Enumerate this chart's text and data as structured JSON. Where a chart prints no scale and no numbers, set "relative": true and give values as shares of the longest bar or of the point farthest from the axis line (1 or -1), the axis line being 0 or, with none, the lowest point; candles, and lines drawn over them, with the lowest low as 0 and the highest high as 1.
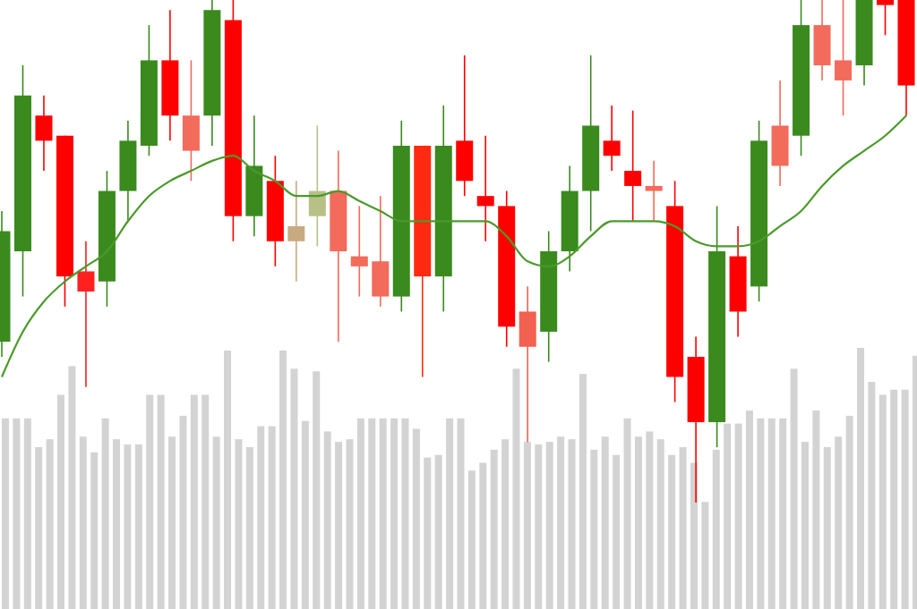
{
  "chart_data": [
    {
      "type": "candlestick",
      "relative": true,
      "categories": [
        null,
        null,
        null,
        null,
        null,
        null,
        null,
        null,
        null,
        null,
        null,
        null,
        null,
        null,
        null,
        null,
        null,
        null,
        null,
        null,
        null,
        null,
        null,
        null,
        null,
        null,
        null,
        null,
        null,
        null,
        null,
        null,
        null,
        null,
        null,
        null,
        null,
        null,
        null,
        null,
        null,
        null,
        null,
        null
      ],
      "ohlc": [
        [
          0.32,
          0.58,
          0.29,
          0.54
        ],
        [
          0.5,
          0.87,
          0.41,
          0.81
        ],
        [
          0.77,
          0.81,
          0.66,
          0.72
        ],
        [
          0.73,
          0.73,
          0.39,
          0.45
        ],
        [
          0.46,
          0.52,
          0.23,
          0.42
        ],
        [
          0.44,
          0.66,
          0.39,
          0.62
        ],
        [
          0.62,
          0.76,
          0.56,
          0.72
        ],
        [
          0.71,
          0.95,
          0.69,
          0.88
        ],
        [
          0.88,
          0.98,
          0.72,
          0.77
        ],
        [
          0.77,
          0.88,
          0.64,
          0.7
        ],
        [
          0.77,
          1,
          0.71,
          0.98
        ],
        [
          0.96,
          1,
          0.52,
          0.57
        ],
        [
          0.57,
          0.77,
          0.53,
          0.67
        ],
        [
          0.64,
          0.69,
          0.47,
          0.52
        ],
        [
          0.55,
          0.64,
          0.44,
          0.52
        ],
        [
          0.57,
          0.75,
          0.51,
          0.62
        ],
        [
          0.62,
          0.7,
          0.32,
          0.5
        ],
        [
          0.49,
          0.59,
          0.41,
          0.47
        ],
        [
          0.48,
          0.61,
          0.39,
          0.41
        ],
        [
          0.41,
          0.76,
          0.38,
          0.71
        ],
        [
          0.71,
          0.71,
          0.25,
          0.45
        ],
        [
          0.45,
          0.79,
          0.38,
          0.71
        ],
        [
          0.72,
          0.89,
          0.61,
          0.64
        ],
        [
          0.61,
          0.73,
          0.52,
          0.59
        ],
        [
          0.59,
          0.62,
          0.31,
          0.35
        ],
        [
          0.38,
          0.43,
          0.12,
          0.31
        ],
        [
          0.34,
          0.54,
          0.28,
          0.5
        ],
        [
          0.5,
          0.67,
          0.46,
          0.62
        ],
        [
          0.62,
          0.89,
          0.54,
          0.75
        ],
        [
          0.72,
          0.79,
          0.66,
          0.69
        ],
        [
          0.66,
          0.78,
          0.56,
          0.63
        ],
        [
          0.63,
          0.68,
          0.56,
          0.62
        ],
        [
          0.59,
          0.64,
          0.2,
          0.25
        ],
        [
          0.29,
          0.33,
          0,
          0.16
        ],
        [
          0.16,
          0.59,
          0.11,
          0.5
        ],
        [
          0.49,
          0.55,
          0.33,
          0.38
        ],
        [
          0.43,
          0.76,
          0.4,
          0.72
        ],
        [
          0.75,
          0.84,
          0.63,
          0.67
        ],
        [
          0.73,
          1,
          0.69,
          0.95
        ],
        [
          0.95,
          1,
          0.84,
          0.87
        ],
        [
          0.88,
          1,
          0.77,
          0.84
        ],
        [
          0.87,
          1,
          0.83,
          1
        ],
        [
          1,
          1,
          0.93,
          0.99
        ],
        [
          1,
          1,
          0.77,
          0.83
        ]
      ],
      "colors": [
        "#3a8a1e",
        "#3a8a1e",
        "#ff0000",
        "#ff0000",
        "#ff2020",
        "#3a8a1e",
        "#3a8a1e",
        "#3a8a1e",
        "#ff0000",
        "#f26b5b",
        "#3a8a1e",
        "#ff0000",
        "#3a8a1e",
        "#ff0000",
        "#c8aa80",
        "#b8c088",
        "#f26b5b",
        "#f26b5b",
        "#f26b5b",
        "#3a8a1e",
        "#ff2a10",
        "#3a8a1e",
        "#ff0000",
        "#ff0000",
        "#ff0000",
        "#f2604f",
        "#3a8a1e",
        "#3a8a1e",
        "#3a8a1e",
        "#ff0000",
        "#ff0000",
        "#f26b5b",
        "#ff0000",
        "#ff0000",
        "#3a8a1e",
        "#ff0000",
        "#3a8a1e",
        "#f26b5b",
        "#3a8a1e",
        "#f26b5b",
        "#f26b5b",
        "#3a8a1e",
        "#ff0000",
        "#ff0000"
      ],
      "series": [
        {
          "type": "line",
          "color": "#4a9a2a",
          "values": [
            0.25,
            0.34,
            0.4,
            0.44,
            0.47,
            0.5,
            0.56,
            0.61,
            0.64,
            0.66,
            0.68,
            0.69,
            0.66,
            0.64,
            0.61,
            0.61,
            0.62,
            0.6,
            0.58,
            0.56,
            0.56,
            0.56,
            0.56,
            0.56,
            0.53,
            0.48,
            0.47,
            0.49,
            0.53,
            0.56,
            0.56,
            0.56,
            0.55,
            0.52,
            0.51,
            0.51,
            0.52,
            0.55,
            0.58,
            0.63,
            0.67,
            0.7,
            0.73,
            0.77
          ]
        }
      ]
    },
    {
      "type": "bar",
      "relative": true,
      "color": "#d3d3d3",
      "categories": [
        null,
        null,
        null,
        null,
        null,
        null,
        null,
        null,
        null,
        null,
        null,
        null,
        null,
        null,
        null,
        null,
        null,
        null,
        null,
        null,
        null,
        null,
        null,
        null,
        null,
        null,
        null,
        null,
        null,
        null,
        null,
        null,
        null,
        null,
        null,
        null,
        null,
        null,
        null,
        null,
        null,
        null,
        null,
        null,
        null,
        null,
        null,
        null,
        null,
        null,
        null,
        null,
        null,
        null,
        null,
        null,
        null,
        null,
        null,
        null,
        null,
        null,
        null,
        null,
        null,
        null,
        null,
        null,
        null,
        null,
        null,
        null,
        null,
        null,
        null,
        null,
        null,
        null,
        null,
        null,
        null,
        null,
        null
      ],
      "values": [
        0.73,
        0.73,
        0.73,
        0.62,
        0.65,
        0.82,
        0.93,
        0.66,
        0.6,
        0.73,
        0.65,
        0.63,
        0.63,
        0.82,
        0.82,
        0.66,
        0.74,
        0.82,
        0.82,
        0.66,
        0.99,
        0.65,
        0.62,
        0.7,
        0.7,
        0.99,
        0.92,
        0.72,
        0.91,
        0.68,
        0.64,
        0.65,
        0.73,
        0.73,
        0.73,
        0.73,
        0.73,
        0.69,
        0.58,
        0.59,
        0.73,
        0.73,
        0.53,
        0.56,
        0.61,
        0.65,
        0.92,
        0.64,
        0.63,
        0.64,
        0.66,
        0.65,
        0.9,
        0.61,
        0.66,
        0.59,
        0.73,
        0.66,
        0.68,
        0.65,
        0.59,
        0.62,
        0.56,
        0.41,
        0.61,
        0.71,
        0.71,
        0.76,
        0.73,
        0.73,
        0.73,
        0.92,
        0.64,
        0.76,
        0.62,
        0.66,
        0.74,
        1,
        0.87,
        0.82,
        0.84,
        0.84,
        0.97
      ]
    }
  ]
}
